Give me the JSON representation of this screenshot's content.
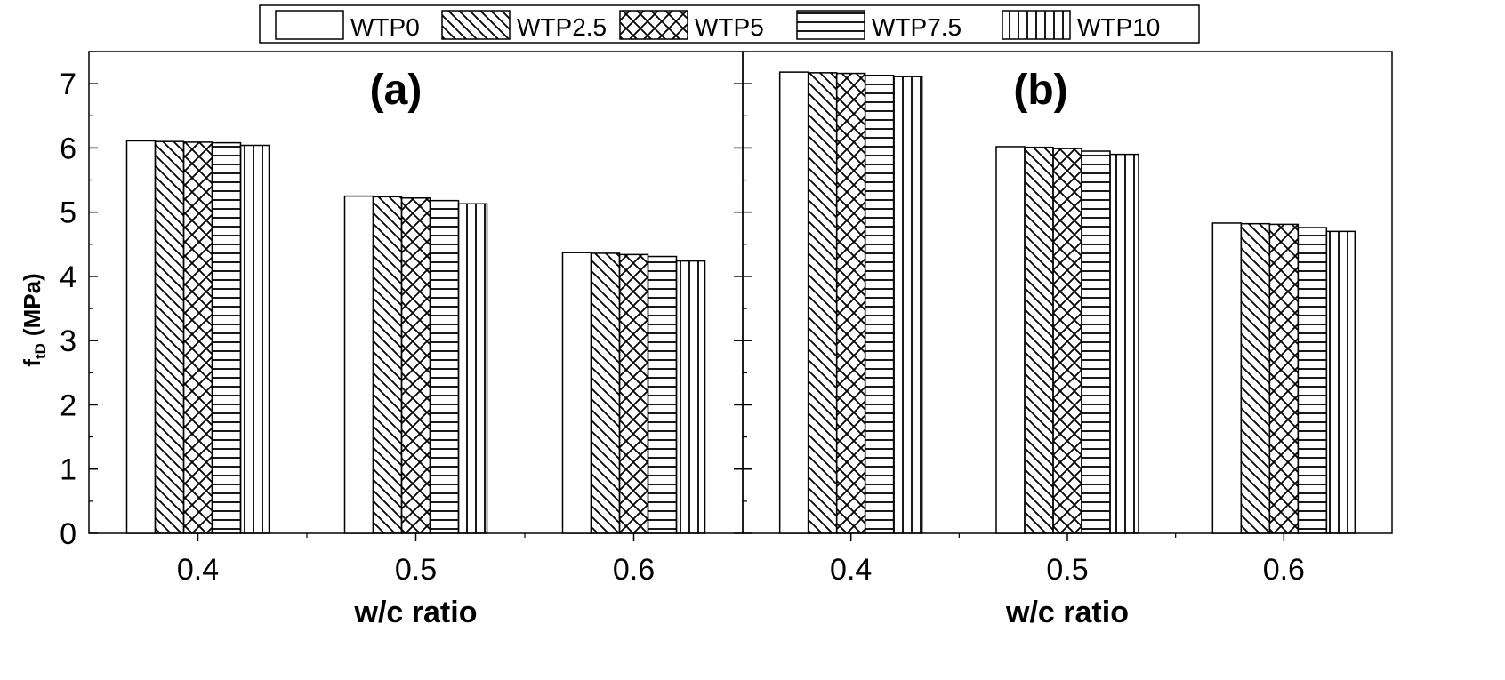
{
  "legend": [
    {
      "name": "WTP0",
      "pattern": "none"
    },
    {
      "name": "WTP2.5",
      "pattern": "diag-back"
    },
    {
      "name": "WTP5",
      "pattern": "cross-diag"
    },
    {
      "name": "WTP7.5",
      "pattern": "horizontal"
    },
    {
      "name": "WTP10",
      "pattern": "vertical"
    }
  ],
  "ylabel": "f",
  "ylabel_subscript": "tD",
  "ylabel_unit": "(MPa)",
  "chart_data": [
    {
      "type": "bar",
      "panel": "(a)",
      "xlabel": "w/c ratio",
      "categories": [
        "0.4",
        "0.5",
        "0.6"
      ],
      "ylim": [
        0,
        7.5
      ],
      "yticks": [
        0,
        1,
        2,
        3,
        4,
        5,
        6,
        7
      ],
      "series": [
        {
          "name": "WTP0",
          "values": [
            6.11,
            5.25,
            4.37
          ]
        },
        {
          "name": "WTP2.5",
          "values": [
            6.1,
            5.24,
            4.36
          ]
        },
        {
          "name": "WTP5",
          "values": [
            6.09,
            5.22,
            4.34
          ]
        },
        {
          "name": "WTP7.5",
          "values": [
            6.08,
            5.18,
            4.31
          ]
        },
        {
          "name": "WTP10",
          "values": [
            6.04,
            5.13,
            4.24
          ]
        }
      ]
    },
    {
      "type": "bar",
      "panel": "(b)",
      "xlabel": "w/c ratio",
      "categories": [
        "0.4",
        "0.5",
        "0.6"
      ],
      "ylim": [
        0,
        7.5
      ],
      "yticks": [
        0,
        1,
        2,
        3,
        4,
        5,
        6,
        7
      ],
      "series": [
        {
          "name": "WTP0",
          "values": [
            7.18,
            6.02,
            4.83
          ]
        },
        {
          "name": "WTP2.5",
          "values": [
            7.17,
            6.01,
            4.82
          ]
        },
        {
          "name": "WTP5",
          "values": [
            7.16,
            5.99,
            4.81
          ]
        },
        {
          "name": "WTP7.5",
          "values": [
            7.13,
            5.95,
            4.76
          ]
        },
        {
          "name": "WTP10",
          "values": [
            7.11,
            5.9,
            4.7
          ]
        }
      ]
    }
  ]
}
